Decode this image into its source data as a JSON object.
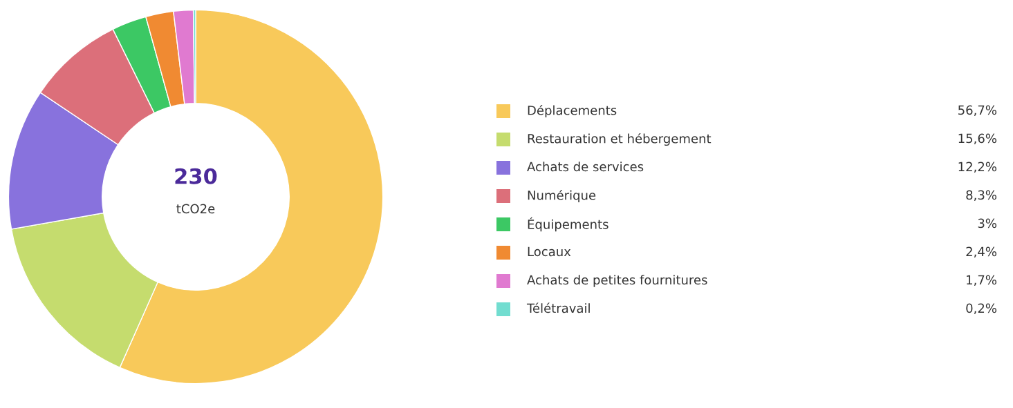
{
  "chart_data": {
    "type": "donut",
    "categories": [
      "Déplacements",
      "Restauration et hébergement",
      "Achats de services",
      "Numérique",
      "Équipements",
      "Locaux",
      "Achats de petites fournitures",
      "Télétravail"
    ],
    "values": [
      56.7,
      15.6,
      12.2,
      8.3,
      3,
      2.4,
      1.7,
      0.2
    ],
    "value_labels": [
      "56,7%",
      "15,6%",
      "12,2%",
      "8,3%",
      "3%",
      "2,4%",
      "1,7%",
      "0,2%"
    ],
    "colors": [
      "#f8c95a",
      "#c5dc6e",
      "#8872dd",
      "#dc6f7a",
      "#3cc864",
      "#f08a32",
      "#e07ad0",
      "#72ddd0"
    ],
    "annotations": [
      "230",
      "tCO2e"
    ],
    "legend": "right"
  }
}
